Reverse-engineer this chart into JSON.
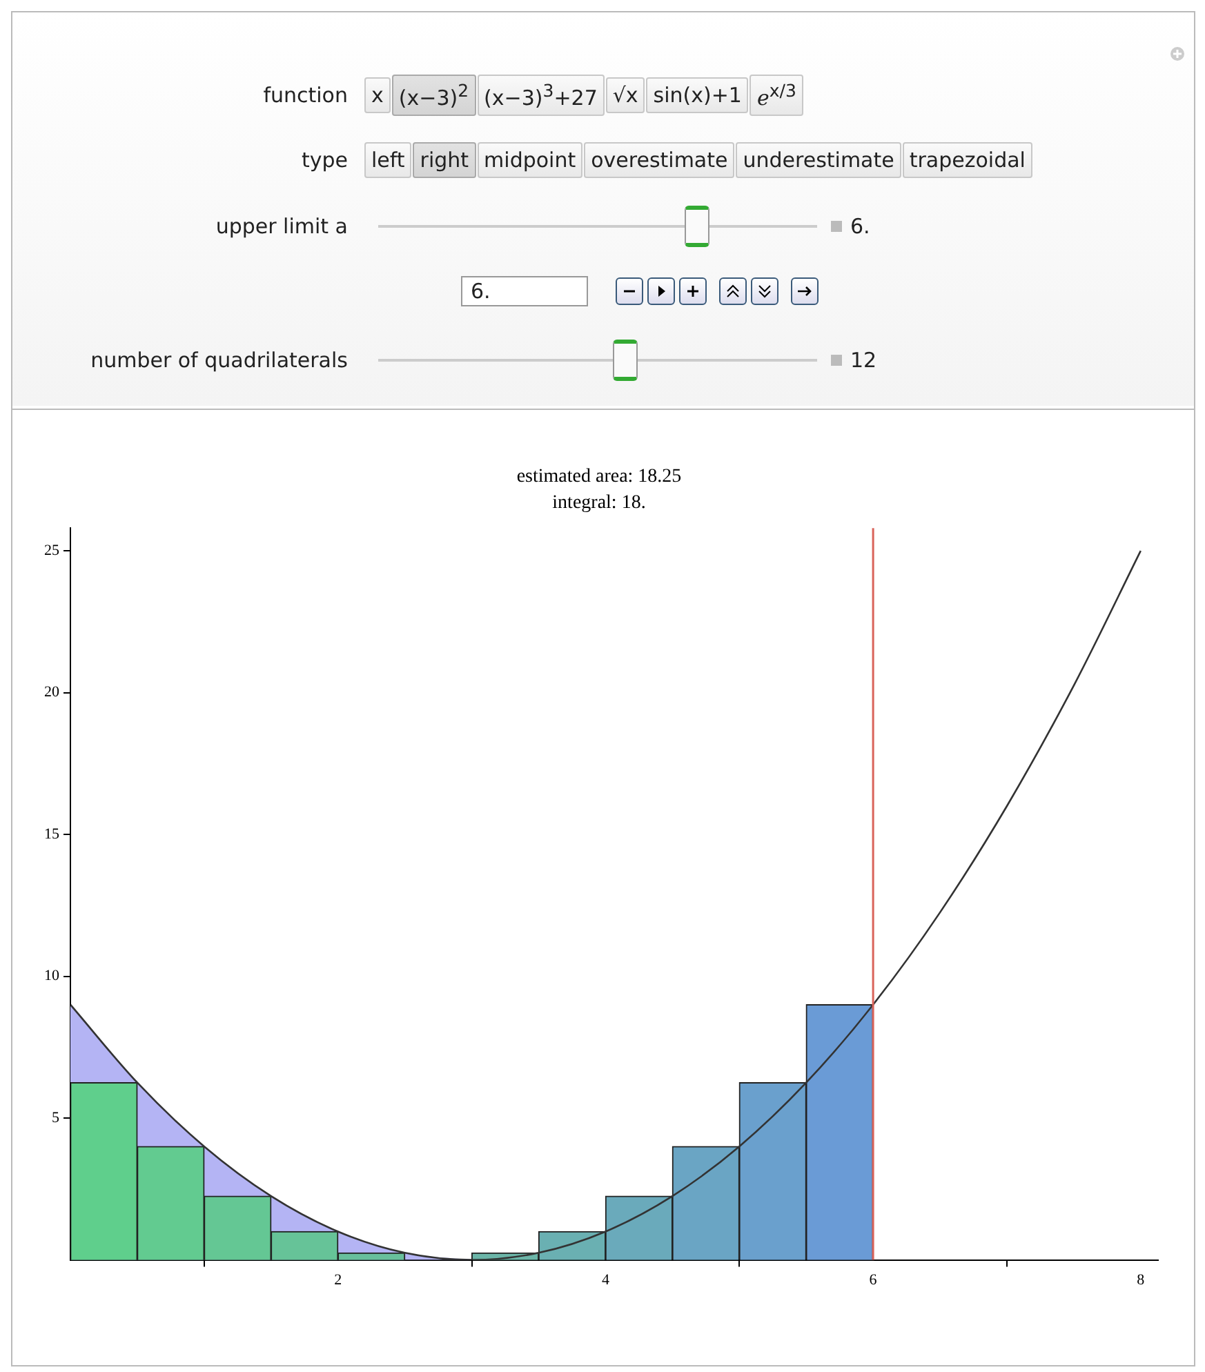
{
  "chart_data": {
    "type": "bar",
    "title": "estimated area: 18.25",
    "subtitle": "integral: 18.",
    "annotations": [
      "function",
      "x",
      "(x−3)$^{2}$",
      "(x−3)$^{3}$+27",
      "√x",
      "sin(x)+1",
      "ℯ$^{x/3}$",
      "type",
      "left",
      "right",
      "midpoint",
      "overestimate",
      "underestimate",
      "trapezoidal",
      "upper limit a",
      "6.",
      "6.",
      "number of quadrilaterals",
      "12"
    ],
    "x": [
      0.25,
      0.75,
      1.25,
      1.75,
      2.25,
      2.75,
      3.25,
      3.75,
      4.25,
      4.75,
      5.25,
      5.75
    ],
    "values": [
      6.25,
      4,
      2.25,
      1,
      0.25,
      0,
      0.25,
      1,
      2.25,
      4,
      6.25,
      9
    ],
    "colors": [
      "#5fcf8c",
      "#62cb90",
      "#64c794",
      "#66c398",
      "#68bf9c",
      "#6abba0",
      "#6bb5a8",
      "#6ab0b2",
      "#6aaabb",
      "#6aa5c4",
      "#6aa0cd",
      "#6a9bd6"
    ],
    "series": [
      {
        "type": "area",
        "color": "#b4b4f4",
        "x": [
          0,
          0.5,
          1,
          1.5,
          2,
          2.5,
          3
        ],
        "values": [
          9,
          6.25,
          4,
          2.25,
          1,
          0.25,
          0
        ]
      },
      {
        "type": "line",
        "color": "#333333",
        "x": [
          0,
          0.5,
          1,
          1.5,
          2,
          2.5,
          3,
          3.5,
          4,
          4.5,
          5,
          5.5,
          6,
          6.5,
          7,
          7.5,
          8
        ],
        "values": [
          9,
          6.25,
          4,
          2.25,
          1,
          0.25,
          0,
          0.25,
          1,
          2.25,
          4,
          6.25,
          9,
          12.25,
          16,
          20.25,
          25
        ]
      }
    ],
    "ref_lines": [
      {
        "axis": "x",
        "value": 6,
        "color": "#d9635a"
      }
    ],
    "xlim": [
      0,
      8.13
    ],
    "ylim": [
      0,
      25.8
    ],
    "xticks": [
      2,
      4,
      6,
      8
    ],
    "yticks": [
      5,
      10,
      15,
      20,
      25
    ],
    "grid": false,
    "legend": false
  }
}
